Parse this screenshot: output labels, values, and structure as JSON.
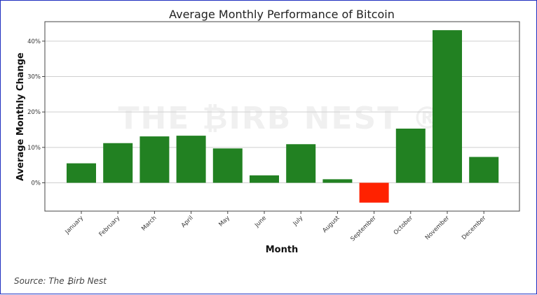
{
  "chart_data": {
    "type": "bar",
    "title": "Average Monthly Performance of Bitcoin",
    "xlabel": "Month",
    "ylabel": "Average Monthly Change",
    "categories": [
      "January",
      "February",
      "March",
      "April",
      "May",
      "June",
      "July",
      "August",
      "September",
      "October",
      "November",
      "December"
    ],
    "values": [
      5.5,
      11.2,
      13.1,
      13.3,
      9.7,
      2.1,
      10.9,
      1.0,
      -5.6,
      15.3,
      43.1,
      7.3
    ],
    "unit": "%",
    "ylim": [
      -8,
      45.5
    ],
    "yticks": [
      0,
      10,
      20,
      30,
      40
    ],
    "ytick_labels": [
      "0%",
      "10%",
      "20%",
      "30%",
      "40%"
    ],
    "grid": "horizontal",
    "legend": "none",
    "colors": {
      "positive": "#228122",
      "negative": "#ff2200"
    }
  },
  "watermark": "THE ₿IRB NEST ®",
  "source": "Source: The ₿irb Nest"
}
